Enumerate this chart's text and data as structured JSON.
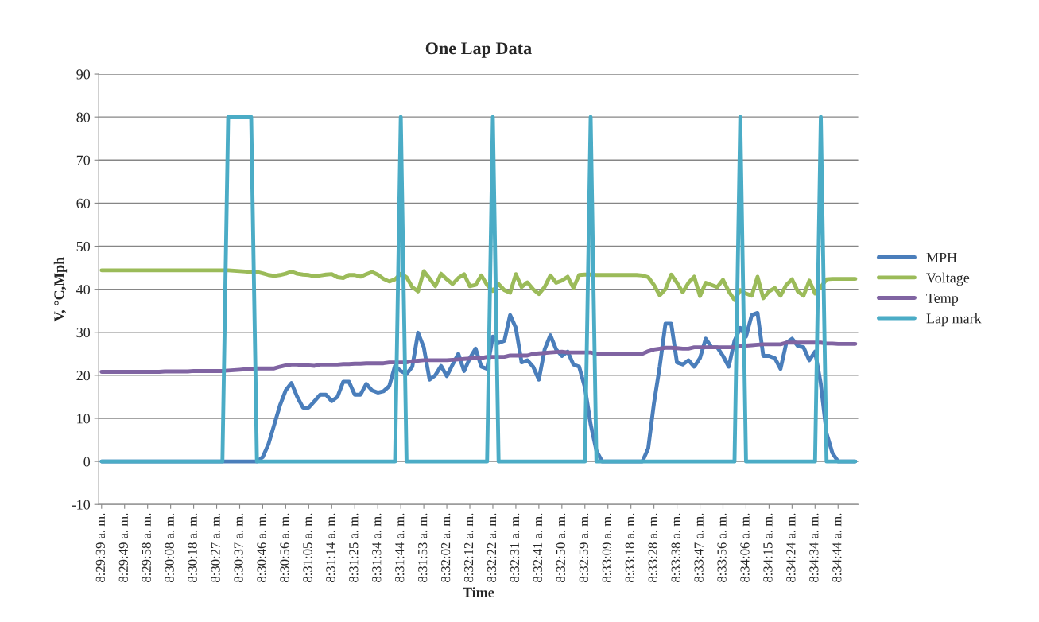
{
  "chart_data": {
    "type": "line",
    "title": "One Lap Data",
    "xlabel": "Time",
    "ylabel": "V, °C,Mph",
    "categories": [
      "8:29:39 a. m.",
      null,
      null,
      null,
      "8:29:49 a. m.",
      null,
      null,
      null,
      "8:29:58 a. m.",
      null,
      null,
      null,
      "8:30:08 a. m.",
      null,
      null,
      null,
      "8:30:18 a. m.",
      null,
      null,
      null,
      "8:30:27 a. m.",
      null,
      null,
      null,
      "8:30:37 a. m.",
      null,
      null,
      null,
      "8:30:46 a. m.",
      null,
      null,
      null,
      "8:30:56 a. m.",
      null,
      null,
      null,
      "8:31:05 a. m.",
      null,
      null,
      null,
      "8:31:14 a. m.",
      null,
      null,
      null,
      "8:31:25 a. m.",
      null,
      null,
      null,
      "8:31:34 a. m.",
      null,
      null,
      null,
      "8:31:44 a. m.",
      null,
      null,
      null,
      "8:31:53 a. m.",
      null,
      null,
      null,
      "8:32:02 a. m.",
      null,
      null,
      null,
      "8:32:12 a. m.",
      null,
      null,
      null,
      "8:32:22 a. m.",
      null,
      null,
      null,
      "8:32:31 a. m.",
      null,
      null,
      null,
      "8:32:41 a. m.",
      null,
      null,
      null,
      "8:32:50 a. m.",
      null,
      null,
      null,
      "8:32:59 a. m.",
      null,
      null,
      null,
      "8:33:09 a. m.",
      null,
      null,
      null,
      "8:33:18 a. m.",
      null,
      null,
      null,
      "8:33:28 a. m.",
      null,
      null,
      null,
      "8:33:38 a. m.",
      null,
      null,
      null,
      "8:33:47 a. m.",
      null,
      null,
      null,
      "8:33:56 a. m.",
      null,
      null,
      null,
      "8:34:06 a. m.",
      null,
      null,
      null,
      "8:34:15 a. m.",
      null,
      null,
      null,
      "8:34:24 a. m.",
      null,
      null,
      null,
      "8:34:34 a. m.",
      null,
      null,
      null,
      "8:34:44 a. m.",
      null,
      null,
      null
    ],
    "series": [
      {
        "name": "MPH",
        "color": "#4a7ebb",
        "values": [
          0,
          0,
          0,
          0,
          0,
          0,
          0,
          0,
          0,
          0,
          0,
          0,
          0,
          0,
          0,
          0,
          0,
          0,
          0,
          0,
          0,
          0,
          0,
          0,
          0,
          0,
          0,
          0,
          1,
          4,
          8.5,
          13,
          16.5,
          18.2,
          15,
          12.5,
          12.5,
          14,
          15.5,
          15.5,
          14,
          15,
          18.5,
          18.5,
          15.5,
          15.5,
          18,
          16.5,
          16,
          16.3,
          17.5,
          22.2,
          21,
          20.3,
          22,
          29.9,
          26.5,
          19,
          20,
          22.2,
          19.8,
          22.5,
          25,
          21,
          24,
          26.2,
          22,
          21.5,
          29,
          27.5,
          28,
          34,
          31,
          23,
          23.5,
          22,
          19,
          26,
          29.3,
          26,
          24.5,
          25.5,
          22.5,
          22,
          17.2,
          8.6,
          2.5,
          0,
          0,
          0,
          0,
          0,
          0,
          0,
          0,
          3,
          13.5,
          22,
          32,
          32,
          23,
          22.5,
          23.5,
          22,
          24,
          28.5,
          26.5,
          26.5,
          24.5,
          22,
          28,
          31,
          29,
          34,
          34.5,
          24.5,
          24.5,
          24,
          21.5,
          27.5,
          28.5,
          26.8,
          26.5,
          23.5,
          25.5,
          18,
          6.5,
          2,
          0,
          0,
          0,
          0
        ]
      },
      {
        "name": "Voltage",
        "color": "#9bbb59",
        "values": [
          44.4,
          44.4,
          44.4,
          44.4,
          44.4,
          44.4,
          44.4,
          44.4,
          44.4,
          44.4,
          44.4,
          44.4,
          44.4,
          44.4,
          44.4,
          44.4,
          44.4,
          44.4,
          44.4,
          44.4,
          44.4,
          44.4,
          44.4,
          44.3,
          44.2,
          44.1,
          44.0,
          44.0,
          43.7,
          43.3,
          43.1,
          43.3,
          43.6,
          44.1,
          43.6,
          43.4,
          43.3,
          43.0,
          43.2,
          43.4,
          43.5,
          42.8,
          42.6,
          43.3,
          43.3,
          42.9,
          43.5,
          44.0,
          43.4,
          42.4,
          41.8,
          42.3,
          43.6,
          42.8,
          40.5,
          39.5,
          44.2,
          42.5,
          40.7,
          43.6,
          42.3,
          41.2,
          42.6,
          43.5,
          40.7,
          41.0,
          43.2,
          41.0,
          39.6,
          41.2,
          39.8,
          39.2,
          43.5,
          40.5,
          41.6,
          40.0,
          38.9,
          40.5,
          43.2,
          41.5,
          42.0,
          42.9,
          40.3,
          43.3,
          43.4,
          43.4,
          43.3,
          43.3,
          43.3,
          43.3,
          43.3,
          43.3,
          43.3,
          43.3,
          43.2,
          42.8,
          41.0,
          38.6,
          40.0,
          43.4,
          41.5,
          39.3,
          41.5,
          42.9,
          38.4,
          41.5,
          41.0,
          40.5,
          42.2,
          39.5,
          37.5,
          39.8,
          39.0,
          38.5,
          42.9,
          37.9,
          39.5,
          40.3,
          38.5,
          41.0,
          42.3,
          39.5,
          38.5,
          42.0,
          39.0,
          40.5,
          42.3,
          42.4,
          42.4,
          42.4,
          42.4,
          42.4
        ]
      },
      {
        "name": "Temp",
        "color": "#8064a2",
        "values": [
          20.8,
          20.8,
          20.8,
          20.8,
          20.8,
          20.8,
          20.8,
          20.8,
          20.8,
          20.8,
          20.8,
          20.9,
          20.9,
          20.9,
          20.9,
          20.9,
          21.0,
          21.0,
          21.0,
          21.0,
          21.0,
          21.0,
          21.1,
          21.2,
          21.3,
          21.4,
          21.5,
          21.6,
          21.6,
          21.6,
          21.6,
          22.0,
          22.3,
          22.5,
          22.5,
          22.3,
          22.3,
          22.2,
          22.5,
          22.5,
          22.5,
          22.5,
          22.6,
          22.6,
          22.7,
          22.7,
          22.8,
          22.8,
          22.8,
          22.8,
          23.0,
          23.0,
          23.0,
          23.0,
          23.3,
          23.4,
          23.5,
          23.5,
          23.5,
          23.5,
          23.5,
          23.6,
          23.7,
          23.8,
          23.9,
          24.0,
          24.0,
          24.3,
          24.3,
          24.3,
          24.3,
          24.6,
          24.6,
          24.6,
          24.6,
          25.0,
          25.1,
          25.2,
          25.3,
          25.4,
          25.5,
          25.3,
          25.3,
          25.3,
          25.3,
          25.3,
          25.0,
          25.0,
          25.0,
          25.0,
          25.0,
          25.0,
          25.0,
          25.0,
          25.0,
          25.6,
          26.0,
          26.2,
          26.4,
          26.4,
          26.3,
          26.2,
          26.2,
          26.5,
          26.5,
          26.5,
          26.5,
          26.5,
          26.5,
          26.5,
          26.5,
          26.8,
          26.9,
          27.0,
          27.1,
          27.2,
          27.2,
          27.2,
          27.2,
          27.6,
          27.6,
          27.6,
          27.6,
          27.6,
          27.6,
          27.6,
          27.4,
          27.4,
          27.3,
          27.3,
          27.3,
          27.3
        ]
      },
      {
        "name": "Lap mark",
        "color": "#4bacc6",
        "values": [
          0,
          0,
          0,
          0,
          0,
          0,
          0,
          0,
          0,
          0,
          0,
          0,
          0,
          0,
          0,
          0,
          0,
          0,
          0,
          0,
          0,
          0,
          80,
          80,
          80,
          80,
          80,
          0,
          0,
          0,
          0,
          0,
          0,
          0,
          0,
          0,
          0,
          0,
          0,
          0,
          0,
          0,
          0,
          0,
          0,
          0,
          0,
          0,
          0,
          0,
          0,
          0,
          80,
          0,
          0,
          0,
          0,
          0,
          0,
          0,
          0,
          0,
          0,
          0,
          0,
          0,
          0,
          0,
          80,
          0,
          0,
          0,
          0,
          0,
          0,
          0,
          0,
          0,
          0,
          0,
          0,
          0,
          0,
          0,
          0,
          80,
          0,
          0,
          0,
          0,
          0,
          0,
          0,
          0,
          0,
          0,
          0,
          0,
          0,
          0,
          0,
          0,
          0,
          0,
          0,
          0,
          0,
          0,
          0,
          0,
          0,
          80,
          0,
          0,
          0,
          0,
          0,
          0,
          0,
          0,
          0,
          0,
          0,
          0,
          0,
          80,
          0,
          0,
          0,
          0,
          0,
          0
        ]
      }
    ],
    "ylim": [
      -10,
      90
    ],
    "yticks": [
      -10,
      0,
      10,
      20,
      30,
      40,
      50,
      60,
      70,
      80,
      90
    ],
    "grid": "y",
    "legend": "right"
  }
}
